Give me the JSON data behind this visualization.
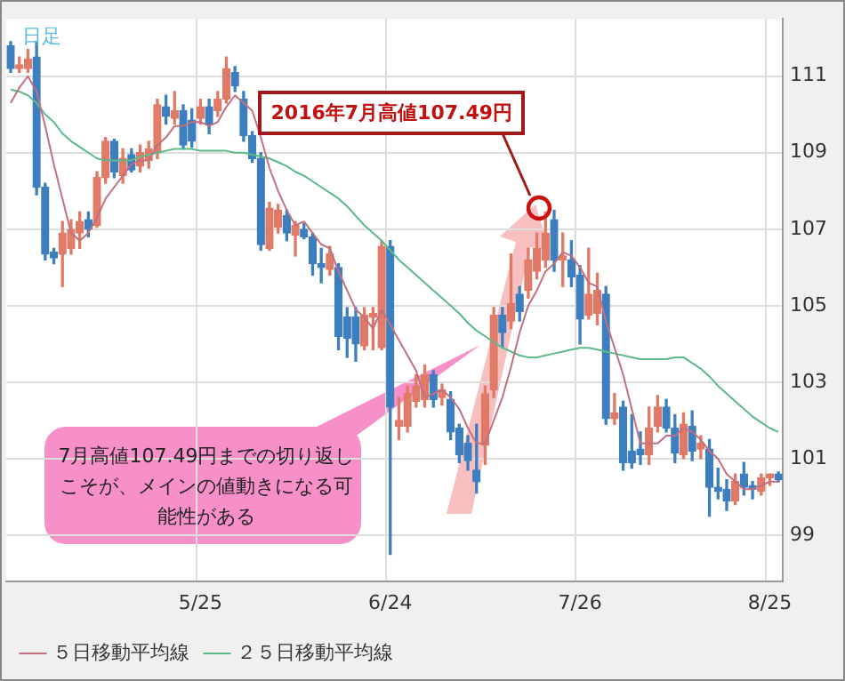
{
  "chart_data": {
    "type": "candlestick",
    "categories": [
      null,
      null,
      null,
      null,
      null,
      null,
      null,
      null,
      null,
      null,
      null,
      null,
      null,
      null,
      null,
      null,
      null,
      null,
      null,
      null,
      null,
      null,
      "5/25",
      null,
      null,
      null,
      null,
      null,
      null,
      null,
      null,
      null,
      null,
      null,
      null,
      null,
      null,
      null,
      null,
      null,
      null,
      null,
      null,
      null,
      "6/24",
      null,
      null,
      null,
      null,
      null,
      null,
      null,
      null,
      null,
      null,
      null,
      null,
      null,
      null,
      null,
      null,
      null,
      null,
      null,
      null,
      null,
      "7/26",
      null,
      null,
      null,
      null,
      null,
      null,
      null,
      null,
      null,
      null,
      null,
      null,
      null,
      null,
      null,
      null,
      null,
      null,
      null,
      null,
      null,
      "8/25",
      null
    ],
    "ohlc": [
      [
        111.8,
        111.9,
        111.1,
        111.2
      ],
      [
        111.2,
        111.5,
        111.1,
        111.3
      ],
      [
        111.2,
        111.7,
        111.1,
        111.45
      ],
      [
        111.5,
        111.9,
        107.9,
        108.1
      ],
      [
        108.1,
        108.2,
        106.2,
        106.35
      ],
      [
        106.4,
        106.5,
        106.1,
        106.25
      ],
      [
        106.35,
        107.2,
        105.5,
        106.9
      ],
      [
        106.5,
        107.25,
        106.35,
        107.0
      ],
      [
        106.9,
        107.45,
        106.5,
        107.2
      ],
      [
        107.25,
        107.45,
        106.8,
        107.0
      ],
      [
        107.1,
        108.5,
        107.05,
        108.35
      ],
      [
        108.35,
        109.4,
        108.2,
        109.3
      ],
      [
        109.3,
        109.35,
        108.35,
        108.5
      ],
      [
        108.4,
        109.1,
        108.2,
        108.85
      ],
      [
        108.95,
        109.1,
        108.5,
        108.55
      ],
      [
        108.65,
        109.2,
        108.5,
        109.0
      ],
      [
        108.8,
        109.3,
        108.6,
        109.1
      ],
      [
        109.0,
        110.4,
        108.85,
        110.25
      ],
      [
        110.2,
        110.5,
        109.75,
        109.95
      ],
      [
        109.9,
        110.6,
        109.75,
        110.1
      ],
      [
        110.1,
        110.25,
        109.1,
        109.2
      ],
      [
        109.85,
        110.15,
        109.15,
        109.3
      ],
      [
        109.9,
        110.4,
        109.75,
        110.2
      ],
      [
        110.2,
        110.4,
        109.5,
        109.75
      ],
      [
        110.1,
        110.6,
        109.95,
        110.4
      ],
      [
        110.4,
        111.5,
        110.3,
        111.2
      ],
      [
        111.1,
        111.25,
        110.6,
        110.75
      ],
      [
        110.4,
        110.6,
        109.3,
        109.45
      ],
      [
        109.45,
        109.55,
        108.75,
        108.85
      ],
      [
        108.85,
        109.0,
        106.45,
        106.6
      ],
      [
        106.5,
        107.7,
        106.45,
        107.55
      ],
      [
        107.05,
        107.65,
        106.9,
        107.5
      ],
      [
        107.35,
        107.5,
        106.7,
        106.9
      ],
      [
        106.85,
        107.2,
        106.3,
        107.1
      ],
      [
        107.0,
        107.15,
        106.75,
        106.8
      ],
      [
        106.8,
        106.9,
        105.8,
        106.1
      ],
      [
        106.1,
        106.5,
        105.6,
        106.0
      ],
      [
        105.95,
        106.55,
        105.8,
        106.35
      ],
      [
        106.0,
        106.1,
        103.85,
        104.2
      ],
      [
        104.7,
        104.95,
        103.65,
        104.15
      ],
      [
        104.7,
        104.95,
        103.55,
        104.0
      ],
      [
        103.95,
        104.95,
        103.85,
        104.75
      ],
      [
        104.7,
        104.95,
        103.85,
        104.8
      ],
      [
        103.9,
        106.7,
        103.85,
        106.55
      ],
      [
        106.55,
        106.7,
        98.5,
        102.35
      ],
      [
        101.85,
        102.6,
        101.5,
        102.0
      ],
      [
        101.85,
        102.9,
        101.7,
        102.7
      ],
      [
        102.5,
        103.2,
        102.35,
        102.9
      ],
      [
        102.55,
        103.45,
        102.35,
        103.2
      ],
      [
        103.2,
        103.3,
        102.35,
        102.55
      ],
      [
        102.6,
        102.95,
        102.4,
        102.8
      ],
      [
        102.55,
        102.75,
        101.5,
        101.7
      ],
      [
        101.8,
        101.9,
        100.9,
        101.1
      ],
      [
        101.4,
        101.6,
        100.7,
        100.95
      ],
      [
        100.7,
        101.9,
        100.1,
        100.4
      ],
      [
        101.35,
        102.9,
        100.85,
        102.7
      ],
      [
        102.8,
        104.95,
        102.6,
        104.75
      ],
      [
        104.75,
        104.95,
        103.9,
        104.3
      ],
      [
        104.6,
        106.35,
        104.4,
        105.05
      ],
      [
        105.3,
        105.5,
        104.6,
        104.85
      ],
      [
        105.4,
        106.5,
        105.2,
        106.2
      ],
      [
        105.9,
        106.9,
        105.7,
        106.5
      ],
      [
        106.2,
        107.45,
        106.0,
        106.9
      ],
      [
        107.25,
        107.49,
        105.9,
        106.2
      ],
      [
        106.2,
        106.9,
        105.5,
        106.3
      ],
      [
        106.2,
        106.7,
        105.5,
        105.75
      ],
      [
        105.8,
        106.05,
        104.0,
        104.65
      ],
      [
        104.75,
        106.5,
        104.65,
        105.3
      ],
      [
        104.8,
        105.85,
        104.5,
        105.4
      ],
      [
        105.3,
        105.5,
        101.9,
        102.05
      ],
      [
        102.05,
        102.7,
        101.9,
        102.2
      ],
      [
        102.35,
        102.5,
        100.7,
        100.9
      ],
      [
        101.2,
        102.15,
        100.75,
        100.9
      ],
      [
        101.25,
        101.7,
        100.85,
        101.1
      ],
      [
        101.1,
        102.35,
        100.85,
        101.8
      ],
      [
        101.85,
        102.65,
        101.7,
        102.35
      ],
      [
        102.35,
        102.55,
        101.7,
        101.8
      ],
      [
        101.8,
        102.15,
        100.9,
        101.15
      ],
      [
        101.1,
        102.2,
        101.0,
        101.9
      ],
      [
        101.85,
        102.25,
        100.95,
        101.2
      ],
      [
        101.25,
        101.6,
        101.0,
        101.4
      ],
      [
        101.25,
        101.5,
        99.5,
        100.25
      ],
      [
        100.25,
        100.75,
        99.95,
        100.15
      ],
      [
        100.2,
        100.45,
        99.65,
        99.9
      ],
      [
        99.9,
        100.6,
        99.8,
        100.4
      ],
      [
        100.6,
        100.9,
        100.05,
        100.25
      ],
      [
        100.3,
        100.4,
        99.95,
        100.2
      ],
      [
        100.15,
        100.6,
        100.05,
        100.5
      ],
      [
        100.5,
        100.6,
        100.3,
        100.6
      ],
      [
        100.6,
        100.65,
        100.4,
        100.45
      ]
    ],
    "colors": [
      "#3d7ebf",
      "#e07a66",
      "#e07a66",
      "#3d7ebf",
      "#3d7ebf",
      "#3d7ebf",
      "#e07a66",
      "#e07a66",
      "#e07a66",
      "#3d7ebf",
      "#e07a66",
      "#e07a66",
      "#3d7ebf",
      "#e07a66",
      "#3d7ebf",
      "#e07a66",
      "#e07a66",
      "#e07a66",
      "#3d7ebf",
      "#e07a66",
      "#3d7ebf",
      "#3d7ebf",
      "#e07a66",
      "#3d7ebf",
      "#e07a66",
      "#e07a66",
      "#3d7ebf",
      "#3d7ebf",
      "#3d7ebf",
      "#3d7ebf",
      "#e07a66",
      "#e07a66",
      "#3d7ebf",
      "#e07a66",
      "#3d7ebf",
      "#3d7ebf",
      "#3d7ebf",
      "#e07a66",
      "#3d7ebf",
      "#3d7ebf",
      "#3d7ebf",
      "#e07a66",
      "#e07a66",
      "#e07a66",
      "#3d7ebf",
      "#e07a66",
      "#e07a66",
      "#e07a66",
      "#e07a66",
      "#3d7ebf",
      "#e07a66",
      "#3d7ebf",
      "#3d7ebf",
      "#3d7ebf",
      "#3d7ebf",
      "#e07a66",
      "#e07a66",
      "#3d7ebf",
      "#e07a66",
      "#3d7ebf",
      "#e07a66",
      "#e07a66",
      "#e07a66",
      "#3d7ebf",
      "#e07a66",
      "#3d7ebf",
      "#3d7ebf",
      "#e07a66",
      "#e07a66",
      "#3d7ebf",
      "#e07a66",
      "#3d7ebf",
      "#3d7ebf",
      "#3d7ebf",
      "#e07a66",
      "#e07a66",
      "#3d7ebf",
      "#3d7ebf",
      "#e07a66",
      "#3d7ebf",
      "#e07a66",
      "#3d7ebf",
      "#3d7ebf",
      "#3d7ebf",
      "#e07a66",
      "#3d7ebf",
      "#3d7ebf",
      "#e07a66",
      "#e07a66",
      "#3d7ebf"
    ],
    "series": [
      {
        "type": "line",
        "name": "５日移動平均線",
        "color": "#c0707e",
        "values": [
          110.3,
          110.7,
          111.0,
          110.6,
          109.7,
          108.7,
          107.8,
          106.9,
          106.7,
          106.9,
          107.3,
          107.8,
          108.1,
          108.4,
          108.7,
          108.8,
          108.8,
          109.2,
          109.4,
          109.7,
          109.7,
          109.8,
          109.8,
          109.7,
          109.8,
          110.2,
          110.5,
          110.3,
          110.1,
          109.4,
          108.6,
          108.0,
          107.5,
          107.1,
          107.2,
          106.9,
          106.6,
          106.5,
          105.9,
          105.4,
          104.9,
          104.7,
          104.4,
          104.9,
          104.5,
          104.1,
          103.7,
          103.3,
          102.6,
          102.7,
          102.8,
          102.6,
          102.3,
          101.8,
          101.4,
          101.4,
          102.0,
          102.6,
          103.4,
          104.3,
          105.0,
          105.4,
          105.9,
          106.1,
          106.4,
          106.3,
          106.0,
          105.6,
          105.5,
          104.6,
          103.9,
          103.2,
          102.3,
          101.4,
          101.4,
          101.4,
          101.6,
          101.6,
          101.8,
          101.7,
          101.5,
          101.2,
          101.0,
          100.6,
          100.4,
          100.2,
          100.2,
          100.3,
          100.4,
          100.4
        ]
      },
      {
        "type": "line",
        "name": "２５日移動平均線",
        "color": "#5cb98a",
        "values": [
          110.65,
          110.6,
          110.5,
          110.3,
          110.0,
          109.8,
          109.5,
          109.3,
          109.15,
          109.0,
          108.85,
          108.8,
          108.8,
          108.8,
          108.8,
          108.9,
          108.95,
          109.0,
          109.05,
          109.1,
          109.1,
          109.1,
          109.05,
          109.05,
          109.05,
          109.05,
          109.0,
          109.0,
          108.95,
          108.9,
          108.85,
          108.75,
          108.65,
          108.5,
          108.4,
          108.25,
          108.1,
          107.95,
          107.8,
          107.6,
          107.35,
          107.1,
          106.9,
          106.7,
          106.45,
          106.2,
          106.0,
          105.8,
          105.6,
          105.4,
          105.2,
          105.0,
          104.8,
          104.55,
          104.35,
          104.2,
          104.05,
          103.9,
          103.8,
          103.7,
          103.65,
          103.65,
          103.7,
          103.75,
          103.8,
          103.85,
          103.9,
          103.9,
          103.85,
          103.8,
          103.75,
          103.7,
          103.65,
          103.6,
          103.6,
          103.6,
          103.6,
          103.65,
          103.65,
          103.5,
          103.35,
          103.15,
          102.9,
          102.7,
          102.5,
          102.3,
          102.1,
          101.95,
          101.8,
          101.7
        ]
      }
    ],
    "ylim": [
      97.8,
      112.5
    ],
    "yticks": [
      99,
      101,
      103,
      105,
      107,
      109,
      111
    ],
    "grid": true,
    "legend": "bottom left",
    "annotations": [
      "日足",
      "2016年7月高値107.49円",
      "7月高値107.49円までの切り返しこそが、メインの値動きになる可能性がある"
    ]
  }
}
